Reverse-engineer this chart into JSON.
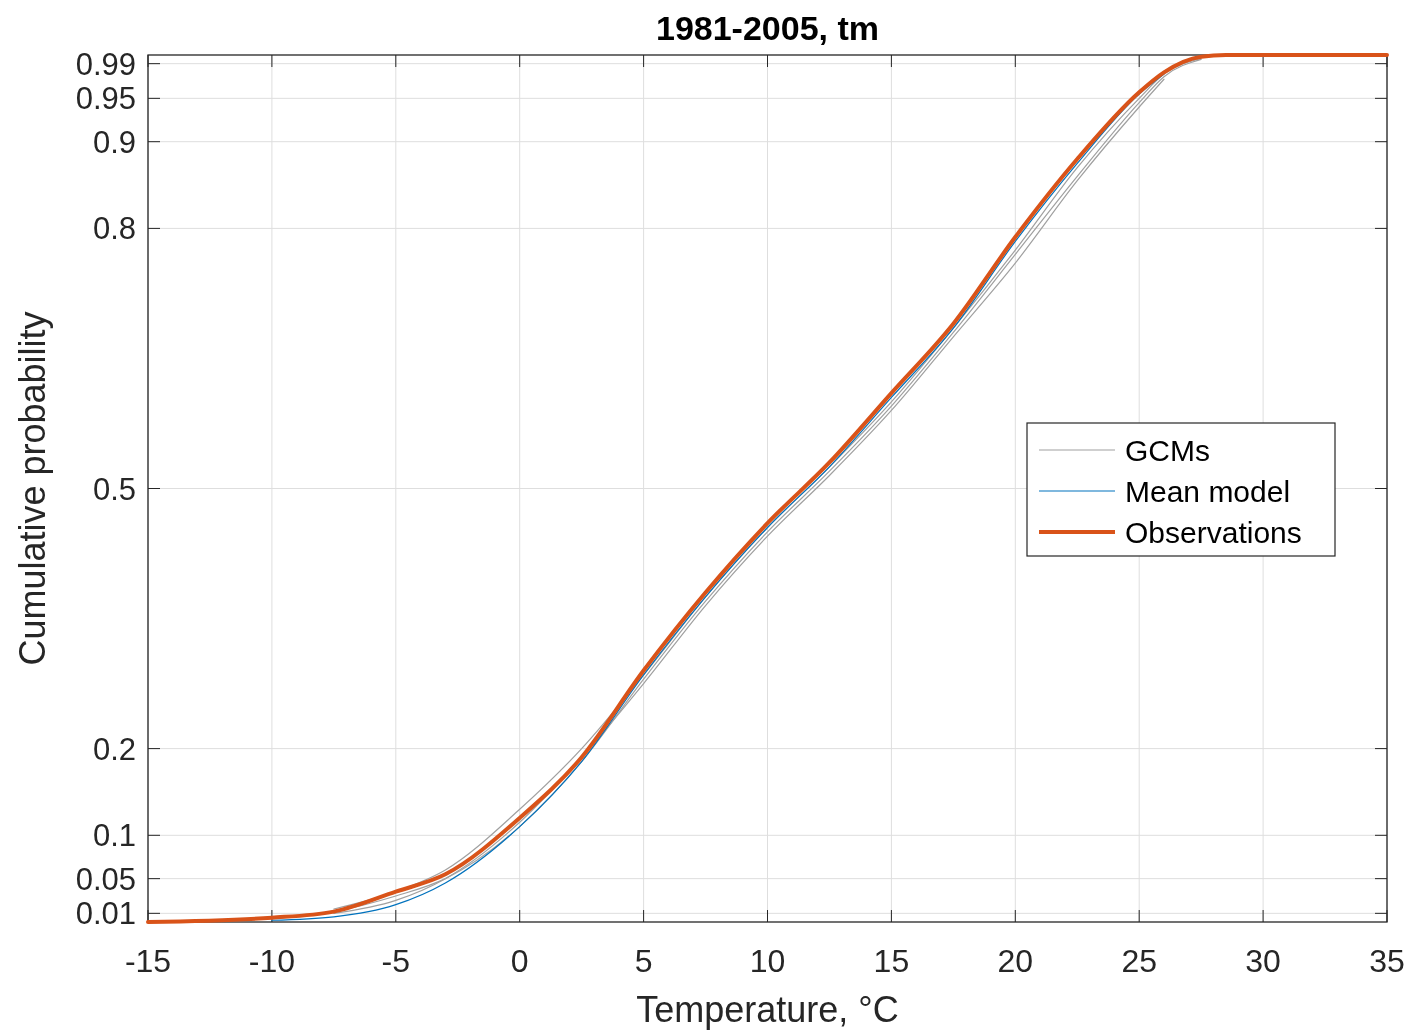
{
  "chart_data": {
    "type": "line",
    "title": "1981-2005, tm",
    "xlabel": "Temperature, °C",
    "ylabel": "Cumulative probability",
    "xlim": [
      -15,
      35
    ],
    "xticks": [
      -15,
      -10,
      -5,
      0,
      5,
      10,
      15,
      20,
      25,
      30,
      35
    ],
    "ylim": [
      0,
      1
    ],
    "yticks": [
      0.01,
      0.05,
      0.1,
      0.2,
      0.5,
      0.8,
      0.9,
      0.95,
      0.99
    ],
    "grid": true,
    "legend": "right",
    "line_style": "solid",
    "x": [
      -15,
      -10,
      -7.5,
      -5,
      -3,
      0,
      2.5,
      5,
      7.5,
      10,
      12.5,
      15,
      17.5,
      20,
      22.5,
      25,
      26,
      27.5,
      28.5,
      35
    ],
    "series": [
      {
        "name": "GCMs",
        "color": "#a0a0a0",
        "values": [
          null,
          0.004,
          0.012,
          0.03,
          0.05,
          0.11,
          0.185,
          0.28,
          0.37,
          0.45,
          0.52,
          0.595,
          0.68,
          0.77,
          0.86,
          0.945,
          0.975,
          0.995,
          null,
          null
        ]
      },
      {
        "color": "#a0a0a0",
        "values": [
          null,
          null,
          0.015,
          0.035,
          0.06,
          0.13,
          0.2,
          0.285,
          0.375,
          0.455,
          0.525,
          0.6,
          0.685,
          0.775,
          0.87,
          0.95,
          0.978,
          0.996,
          null,
          null
        ]
      },
      {
        "color": "#a0a0a0",
        "values": [
          null,
          null,
          0.01,
          0.025,
          0.05,
          0.115,
          0.19,
          0.275,
          0.365,
          0.445,
          0.515,
          0.59,
          0.675,
          0.76,
          0.855,
          0.94,
          0.972,
          null,
          null,
          null
        ]
      },
      {
        "name": "Mean model",
        "color": "#0072bd",
        "values": [
          null,
          0.002,
          0.006,
          0.02,
          0.045,
          0.11,
          0.185,
          0.285,
          0.375,
          0.455,
          0.525,
          0.605,
          0.685,
          0.785,
          0.875,
          0.955,
          0.978,
          null,
          null,
          null
        ]
      },
      {
        "name": "Observations",
        "color": "#d95319",
        "values": [
          0,
          0.005,
          0.012,
          0.035,
          0.055,
          0.12,
          0.19,
          0.29,
          0.38,
          0.46,
          0.53,
          0.61,
          0.69,
          0.79,
          0.88,
          0.957,
          0.98,
          0.998,
          1,
          1
        ]
      }
    ]
  }
}
